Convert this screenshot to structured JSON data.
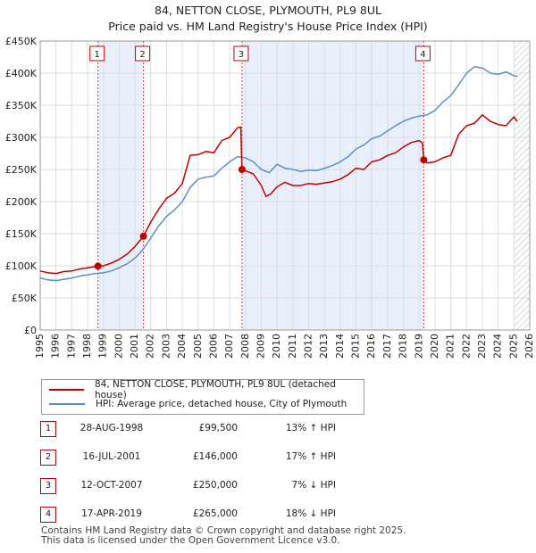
{
  "title": "84, NETTON CLOSE, PLYMOUTH, PL9 8UL",
  "subtitle": "Price paid vs. HM Land Registry's House Price Index (HPI)",
  "chart_data": {
    "type": "line",
    "ylim": [
      0,
      450000
    ],
    "xlim": [
      1995,
      2026
    ],
    "y_ticks": [
      0,
      50000,
      100000,
      150000,
      200000,
      250000,
      300000,
      350000,
      400000,
      450000
    ],
    "y_tick_labels": [
      "£0",
      "£50K",
      "£100K",
      "£150K",
      "£200K",
      "£250K",
      "£300K",
      "£350K",
      "£400K",
      "£450K"
    ],
    "x_ticks": [
      1995,
      1996,
      1997,
      1998,
      1999,
      2000,
      2001,
      2002,
      2003,
      2004,
      2005,
      2006,
      2007,
      2008,
      2009,
      2010,
      2011,
      2012,
      2013,
      2014,
      2015,
      2016,
      2017,
      2018,
      2019,
      2020,
      2021,
      2022,
      2023,
      2024,
      2025,
      2026
    ],
    "grid": true,
    "shaded_ranges": [
      [
        1998.66,
        2001.54
      ],
      [
        2007.78,
        2019.29
      ]
    ],
    "hatched_from": 2025.0,
    "series": [
      {
        "name": "84, NETTON CLOSE, PLYMOUTH, PL9 8UL (detached house)",
        "color": "#c00000",
        "x": [
          1995.0,
          1995.5,
          1996.0,
          1996.5,
          1997.0,
          1997.5,
          1998.0,
          1998.66,
          1999.0,
          1999.5,
          2000.0,
          2000.5,
          2001.0,
          2001.54,
          2002.0,
          2002.5,
          2003.0,
          2003.5,
          2004.0,
          2004.5,
          2005.0,
          2005.5,
          2006.0,
          2006.5,
          2007.0,
          2007.5,
          2007.7,
          2007.78,
          2008.0,
          2008.5,
          2009.0,
          2009.3,
          2009.6,
          2010.0,
          2010.5,
          2011.0,
          2011.5,
          2012.0,
          2012.5,
          2013.0,
          2013.5,
          2014.0,
          2014.5,
          2015.0,
          2015.5,
          2016.0,
          2016.5,
          2017.0,
          2017.5,
          2018.0,
          2018.5,
          2019.0,
          2019.2,
          2019.29,
          2019.5,
          2020.0,
          2020.5,
          2021.0,
          2021.5,
          2022.0,
          2022.5,
          2023.0,
          2023.5,
          2024.0,
          2024.5,
          2025.0,
          2025.2
        ],
        "values": [
          92000,
          89000,
          88000,
          91000,
          92000,
          95000,
          97000,
          99500,
          100000,
          104000,
          110000,
          118000,
          130000,
          146000,
          168000,
          188000,
          205000,
          213000,
          228000,
          272000,
          273000,
          278000,
          276000,
          295000,
          300000,
          315000,
          316000,
          250000,
          248000,
          243000,
          225000,
          208000,
          212000,
          223000,
          230000,
          225000,
          225000,
          228000,
          227000,
          229000,
          231000,
          235000,
          242000,
          252000,
          250000,
          262000,
          265000,
          272000,
          276000,
          285000,
          292000,
          295000,
          291000,
          265000,
          260000,
          262000,
          268000,
          272000,
          305000,
          318000,
          322000,
          335000,
          325000,
          320000,
          318000,
          332000,
          325000
        ]
      },
      {
        "name": "HPI: Average price, detached house, City of Plymouth",
        "color": "#5b8fc8",
        "x": [
          1995.0,
          1995.5,
          1996.0,
          1996.5,
          1997.0,
          1997.5,
          1998.0,
          1998.5,
          1999.0,
          1999.5,
          2000.0,
          2000.5,
          2001.0,
          2001.5,
          2002.0,
          2002.5,
          2003.0,
          2003.5,
          2004.0,
          2004.5,
          2005.0,
          2005.5,
          2006.0,
          2006.5,
          2007.0,
          2007.5,
          2008.0,
          2008.5,
          2009.0,
          2009.5,
          2010.0,
          2010.5,
          2011.0,
          2011.5,
          2012.0,
          2012.5,
          2013.0,
          2013.5,
          2014.0,
          2014.5,
          2015.0,
          2015.5,
          2016.0,
          2016.5,
          2017.0,
          2017.5,
          2018.0,
          2018.5,
          2019.0,
          2019.5,
          2020.0,
          2020.5,
          2021.0,
          2021.5,
          2022.0,
          2022.5,
          2023.0,
          2023.5,
          2024.0,
          2024.5,
          2025.0,
          2025.2
        ],
        "values": [
          81000,
          78000,
          77000,
          79000,
          81000,
          84000,
          86000,
          88000,
          89000,
          92000,
          97000,
          103000,
          112000,
          125000,
          143000,
          162000,
          177000,
          187000,
          200000,
          222000,
          235000,
          238000,
          240000,
          252000,
          262000,
          270000,
          268000,
          262000,
          250000,
          245000,
          258000,
          252000,
          250000,
          247000,
          249000,
          248000,
          252000,
          256000,
          262000,
          270000,
          282000,
          288000,
          298000,
          302000,
          310000,
          318000,
          325000,
          330000,
          333000,
          335000,
          342000,
          355000,
          365000,
          382000,
          400000,
          410000,
          408000,
          400000,
          398000,
          402000,
          396000,
          395000
        ]
      }
    ],
    "markers": [
      {
        "label": "1",
        "x": 1998.66,
        "value": 99500
      },
      {
        "label": "2",
        "x": 2001.54,
        "value": 146000
      },
      {
        "label": "3",
        "x": 2007.78,
        "value": 250000
      },
      {
        "label": "4",
        "x": 2019.29,
        "value": 265000
      }
    ]
  },
  "legend": [
    {
      "label": "84, NETTON CLOSE, PLYMOUTH, PL9 8UL (detached house)",
      "color": "#c00000"
    },
    {
      "label": "HPI: Average price, detached house, City of Plymouth",
      "color": "#5b8fc8"
    }
  ],
  "transactions": [
    {
      "num": "1",
      "date": "28-AUG-1998",
      "price": "£99,500",
      "pct": "13% ↑ HPI"
    },
    {
      "num": "2",
      "date": "16-JUL-2001",
      "price": "£146,000",
      "pct": "17% ↑ HPI"
    },
    {
      "num": "3",
      "date": "12-OCT-2007",
      "price": "£250,000",
      "pct": "7% ↓ HPI"
    },
    {
      "num": "4",
      "date": "17-APR-2019",
      "price": "£265,000",
      "pct": "18% ↓ HPI"
    }
  ],
  "footer": {
    "line1": "Contains HM Land Registry data © Crown copyright and database right 2025.",
    "line2": "This data is licensed under the Open Government Licence v3.0."
  }
}
